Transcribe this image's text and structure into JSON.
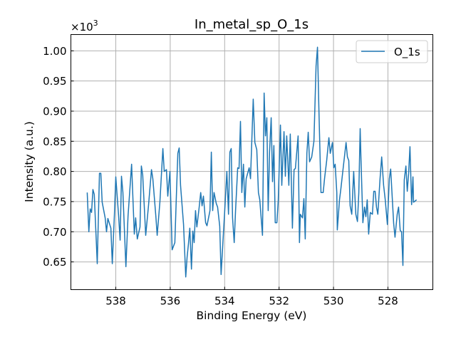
{
  "chart_data": {
    "type": "line",
    "title": "In_metal_sp_O_1s",
    "xlabel": "Binding Energy (eV)",
    "ylabel": "Intensity (a.u.)",
    "y_multiplier_label": "×10",
    "y_multiplier_exp": "3",
    "xlim": [
      539.65,
      526.35
    ],
    "ylim": [
      0.604,
      1.027
    ],
    "x_inverted": true,
    "grid": true,
    "legend_position": "top-right",
    "x_ticks": [
      538,
      536,
      534,
      532,
      530,
      528
    ],
    "x_tick_labels": [
      "538",
      "536",
      "534",
      "532",
      "530",
      "528"
    ],
    "y_ticks": [
      0.65,
      0.7,
      0.75,
      0.8,
      0.85,
      0.9,
      0.95,
      1.0
    ],
    "y_tick_labels": [
      "0.65",
      "0.70",
      "0.75",
      "0.80",
      "0.85",
      "0.90",
      "0.95",
      "1.00"
    ],
    "series": [
      {
        "name": "O_1s",
        "color": "#1f77b4",
        "x": [
          539.05,
          538.99,
          538.94,
          538.89,
          538.84,
          538.79,
          538.68,
          538.6,
          538.55,
          538.5,
          538.39,
          538.34,
          538.29,
          538.18,
          538.13,
          538.05,
          538.0,
          537.9,
          537.84,
          537.79,
          537.74,
          537.63,
          537.55,
          537.42,
          537.32,
          537.27,
          537.21,
          537.11,
          537.06,
          537.01,
          536.9,
          536.8,
          536.69,
          536.64,
          536.53,
          536.48,
          536.38,
          536.27,
          536.22,
          536.14,
          536.09,
          536.01,
          535.93,
          535.83,
          535.77,
          535.72,
          535.67,
          535.62,
          535.51,
          535.43,
          535.38,
          535.33,
          535.28,
          535.22,
          535.17,
          535.12,
          535.07,
          535.02,
          534.94,
          534.88,
          534.83,
          534.78,
          534.7,
          534.65,
          534.54,
          534.49,
          534.44,
          534.39,
          534.31,
          534.26,
          534.18,
          534.13,
          534.05,
          533.99,
          533.92,
          533.86,
          533.81,
          533.76,
          533.71,
          533.65,
          533.6,
          533.52,
          533.47,
          533.42,
          533.37,
          533.31,
          533.26,
          533.21,
          533.1,
          533.05,
          532.95,
          532.89,
          532.82,
          532.76,
          532.71,
          532.61,
          532.55,
          532.5,
          532.45,
          532.4,
          532.35,
          532.29,
          532.24,
          532.19,
          532.14,
          532.08,
          532.03,
          531.95,
          531.9,
          531.82,
          531.77,
          531.72,
          531.64,
          531.59,
          531.51,
          531.45,
          531.4,
          531.3,
          531.25,
          531.22,
          531.14,
          531.09,
          531.04,
          530.98,
          530.93,
          530.88,
          530.8,
          530.72,
          530.64,
          530.59,
          530.54,
          530.46,
          530.38,
          530.33,
          530.25,
          530.17,
          530.12,
          530.04,
          529.99,
          529.94,
          529.88,
          529.86,
          529.78,
          529.73,
          529.65,
          529.54,
          529.49,
          529.44,
          529.39,
          529.33,
          529.26,
          529.18,
          529.12,
          529.07,
          529.02,
          528.99,
          528.92,
          528.86,
          528.81,
          528.76,
          528.71,
          528.65,
          528.57,
          528.52,
          528.47,
          528.42,
          528.37,
          528.29,
          528.23,
          528.16,
          528.1,
          528.02,
          527.95,
          527.9,
          527.79,
          527.74,
          527.66,
          527.61,
          527.55,
          527.5,
          527.45,
          527.4,
          527.34,
          527.29,
          527.24,
          527.19,
          527.13,
          527.08,
          527.06,
          527.0,
          526.95
        ],
        "y": [
          0.765,
          0.7,
          0.738,
          0.732,
          0.77,
          0.762,
          0.647,
          0.797,
          0.797,
          0.749,
          0.723,
          0.7,
          0.722,
          0.706,
          0.647,
          0.729,
          0.791,
          0.729,
          0.686,
          0.792,
          0.765,
          0.642,
          0.726,
          0.812,
          0.696,
          0.723,
          0.688,
          0.708,
          0.809,
          0.794,
          0.694,
          0.743,
          0.803,
          0.788,
          0.726,
          0.694,
          0.749,
          0.838,
          0.8,
          0.803,
          0.759,
          0.8,
          0.67,
          0.682,
          0.765,
          0.83,
          0.839,
          0.777,
          0.712,
          0.625,
          0.658,
          0.68,
          0.706,
          0.638,
          0.701,
          0.682,
          0.735,
          0.708,
          0.739,
          0.765,
          0.743,
          0.759,
          0.715,
          0.71,
          0.735,
          0.832,
          0.735,
          0.765,
          0.747,
          0.741,
          0.709,
          0.629,
          0.694,
          0.741,
          0.8,
          0.729,
          0.832,
          0.838,
          0.723,
          0.682,
          0.735,
          0.806,
          0.805,
          0.883,
          0.765,
          0.812,
          0.741,
          0.788,
          0.806,
          0.788,
          0.92,
          0.848,
          0.836,
          0.765,
          0.753,
          0.694,
          0.93,
          0.859,
          0.889,
          0.735,
          0.832,
          0.889,
          0.783,
          0.843,
          0.715,
          0.715,
          0.751,
          0.877,
          0.777,
          0.866,
          0.792,
          0.859,
          0.777,
          0.862,
          0.706,
          0.803,
          0.805,
          0.859,
          0.682,
          0.729,
          0.723,
          0.755,
          0.688,
          0.83,
          0.865,
          0.816,
          0.824,
          0.85,
          0.975,
          1.006,
          0.907,
          0.765,
          0.765,
          0.788,
          0.818,
          0.856,
          0.83,
          0.848,
          0.806,
          0.812,
          0.765,
          0.703,
          0.753,
          0.771,
          0.804,
          0.848,
          0.824,
          0.818,
          0.743,
          0.729,
          0.8,
          0.729,
          0.717,
          0.765,
          0.871,
          0.818,
          0.715,
          0.741,
          0.725,
          0.753,
          0.696,
          0.732,
          0.729,
          0.767,
          0.767,
          0.741,
          0.729,
          0.788,
          0.824,
          0.777,
          0.753,
          0.712,
          0.788,
          0.804,
          0.714,
          0.691,
          0.729,
          0.741,
          0.702,
          0.7,
          0.644,
          0.786,
          0.809,
          0.767,
          0.797,
          0.841,
          0.745,
          0.791,
          0.749,
          0.751,
          0.753
        ]
      }
    ]
  }
}
